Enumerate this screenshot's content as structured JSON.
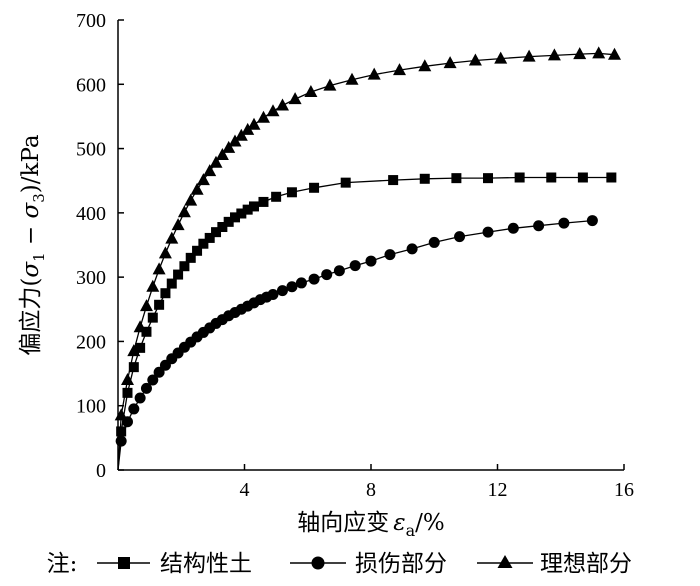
{
  "chart_data": {
    "type": "line",
    "xlabel": "轴向应变",
    "xlabel_symbol": "ε",
    "xlabel_subscript": "a",
    "xlabel_unit": "/%",
    "ylabel": "偏应力(σ1 − σ3)/kPa",
    "ylabel_parts": [
      "偏应力(",
      "σ",
      "1",
      " − ",
      "σ",
      "3",
      ")/kPa"
    ],
    "xlim": [
      0,
      16
    ],
    "ylim": [
      0,
      700
    ],
    "xticks": [
      4,
      8,
      12,
      16
    ],
    "yticks": [
      0,
      100,
      200,
      300,
      400,
      500,
      600,
      700
    ],
    "grid": false,
    "legend_prefix": "注:",
    "series": [
      {
        "name": "结构性土",
        "marker": "square",
        "x": [
          0.1,
          0.3,
          0.5,
          0.7,
          0.9,
          1.1,
          1.3,
          1.5,
          1.7,
          1.9,
          2.1,
          2.3,
          2.5,
          2.7,
          2.9,
          3.1,
          3.3,
          3.5,
          3.7,
          3.9,
          4.1,
          4.3,
          4.6,
          5.0,
          5.5,
          6.2,
          7.2,
          8.7,
          9.7,
          10.7,
          11.7,
          12.7,
          13.7,
          14.7,
          15.6
        ],
        "y": [
          60,
          120,
          160,
          190,
          215,
          237,
          257,
          275,
          290,
          304,
          317,
          330,
          341,
          352,
          361,
          370,
          378,
          386,
          393,
          399,
          405,
          410,
          417,
          425,
          432,
          439,
          447,
          451,
          453,
          454,
          454,
          455,
          455,
          455,
          455
        ]
      },
      {
        "name": "损伤部分",
        "marker": "circle",
        "x": [
          0.1,
          0.3,
          0.5,
          0.7,
          0.9,
          1.1,
          1.3,
          1.5,
          1.7,
          1.9,
          2.1,
          2.3,
          2.5,
          2.7,
          2.9,
          3.1,
          3.3,
          3.5,
          3.7,
          3.9,
          4.1,
          4.3,
          4.5,
          4.7,
          4.9,
          5.2,
          5.5,
          5.8,
          6.2,
          6.6,
          7.0,
          7.5,
          8.0,
          8.6,
          9.3,
          10.0,
          10.8,
          11.7,
          12.5,
          13.3,
          14.1,
          15.0
        ],
        "y": [
          45,
          75,
          95,
          112,
          127,
          140,
          152,
          163,
          173,
          182,
          191,
          199,
          207,
          214,
          221,
          228,
          234,
          240,
          245,
          250,
          255,
          260,
          265,
          269,
          273,
          279,
          285,
          291,
          297,
          304,
          310,
          318,
          325,
          335,
          344,
          354,
          363,
          370,
          376,
          380,
          384,
          388
        ]
      },
      {
        "name": "理想部分",
        "marker": "triangle",
        "x": [
          0.1,
          0.3,
          0.5,
          0.7,
          0.9,
          1.1,
          1.3,
          1.5,
          1.7,
          1.9,
          2.1,
          2.3,
          2.5,
          2.7,
          2.9,
          3.1,
          3.3,
          3.5,
          3.7,
          3.9,
          4.1,
          4.3,
          4.6,
          4.9,
          5.2,
          5.6,
          6.1,
          6.7,
          7.4,
          8.1,
          8.9,
          9.7,
          10.5,
          11.3,
          12.1,
          13.0,
          13.8,
          14.6,
          15.2,
          15.7
        ],
        "y": [
          85,
          140,
          185,
          222,
          255,
          285,
          312,
          337,
          360,
          381,
          401,
          419,
          436,
          451,
          465,
          478,
          490,
          501,
          511,
          520,
          529,
          537,
          548,
          558,
          567,
          577,
          588,
          598,
          607,
          615,
          622,
          628,
          633,
          637,
          640,
          643,
          645,
          647,
          648,
          646
        ]
      }
    ]
  }
}
